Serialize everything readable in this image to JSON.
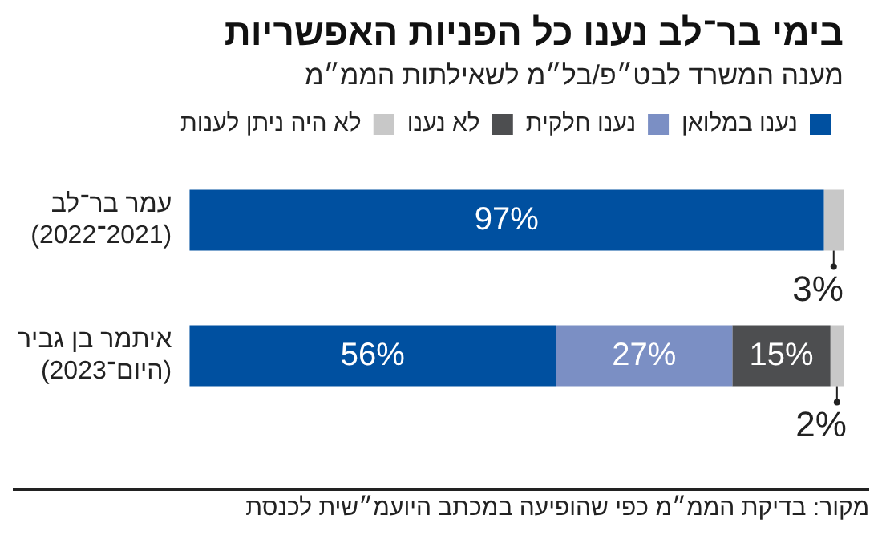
{
  "chart_data": {
    "type": "bar",
    "orientation": "horizontal",
    "stacked": true,
    "title": "בימי בר־לב נענו כל הפניות האפשריות",
    "subtitle": "מענה המשרד לבט״פ/בל״מ לשאילתות הממ״מ",
    "categories": [
      "עמר בר־לב\n(2021־2022)",
      "איתמר בן גביר\n(היום־2023)"
    ],
    "series": [
      {
        "name": "נענו במלואן",
        "color": "#0050a0",
        "values": [
          97,
          56
        ],
        "value_labels": [
          "97%",
          "56%"
        ]
      },
      {
        "name": "נענו חלקית",
        "color": "#7b8fc4",
        "values": [
          0,
          27
        ],
        "value_labels": [
          null,
          "27%"
        ]
      },
      {
        "name": "לא נענו",
        "color": "#4d4e50",
        "values": [
          0,
          15
        ],
        "value_labels": [
          null,
          "15%"
        ]
      },
      {
        "name": "לא היה ניתן לענות",
        "color": "#c8c8c8",
        "values": [
          3,
          2
        ],
        "value_labels": [
          "3%",
          "2%"
        ]
      }
    ],
    "xlim": [
      0,
      100
    ],
    "grid": false,
    "legend": "top right",
    "tick_labels": "y",
    "annotations": [
      "מקור: בדיקת הממ״מ כפי שהופיעה במכתב היועמ״שית לכנסת"
    ]
  }
}
